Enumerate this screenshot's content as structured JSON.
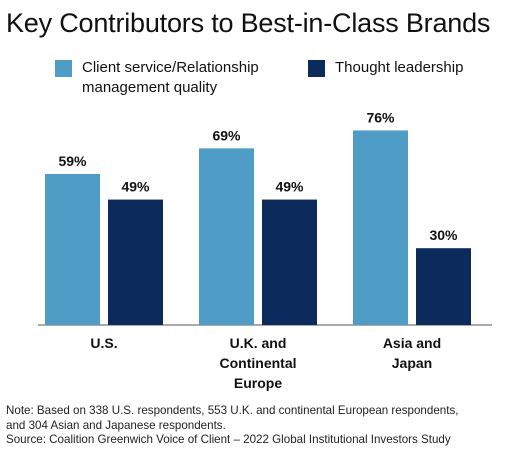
{
  "title": "Key Contributors to Best-in-Class Brands",
  "legend": [
    {
      "label": "Client service/Relationship management quality",
      "color": "#4f9cc6"
    },
    {
      "label": "Thought leadership",
      "color": "#0c2a5b"
    }
  ],
  "chart_data": {
    "type": "bar",
    "title": "Key Contributors to Best-in-Class Brands",
    "categories": [
      "U.S.",
      "U.K. and Continental Europe",
      "Asia and Japan"
    ],
    "category_lines": [
      [
        "U.S."
      ],
      [
        "U.K. and",
        "Continental",
        "Europe"
      ],
      [
        "Asia and",
        "Japan"
      ]
    ],
    "series": [
      {
        "name": "Client service/Relationship management quality",
        "values": [
          59,
          69,
          76
        ],
        "labels": [
          "59%",
          "69%",
          "76%"
        ],
        "color": "#4f9cc6"
      },
      {
        "name": "Thought leadership",
        "values": [
          49,
          49,
          30
        ],
        "labels": [
          "49%",
          "49%",
          "30%"
        ],
        "color": "#0c2a5b"
      }
    ],
    "unit": "%",
    "ylim": [
      0,
      100
    ],
    "grid": false,
    "legend_position": "top"
  },
  "note": {
    "line1": "Note: Based on 338 U.S. respondents, 553 U.K. and continental European respondents,",
    "line2": "and 304 Asian and Japanese respondents.",
    "line3": "Source: Coalition Greenwich Voice of Client – 2022 Global Institutional Investors Study"
  }
}
